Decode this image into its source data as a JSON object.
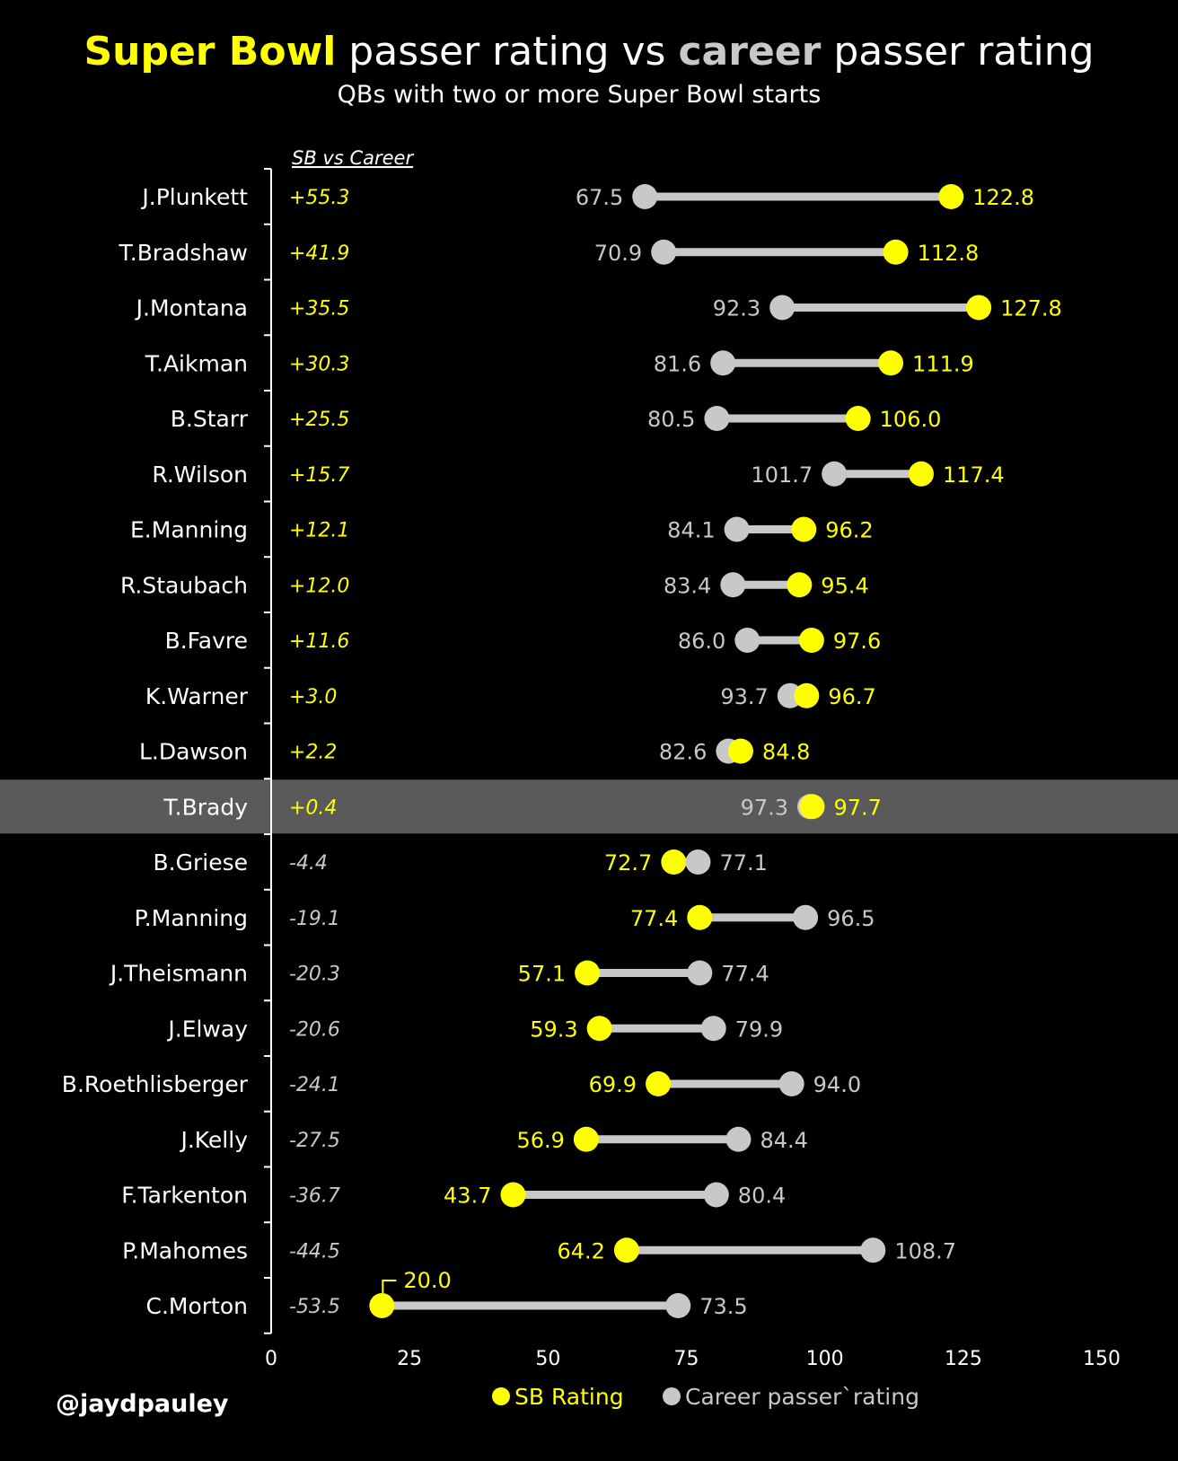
{
  "title": {
    "part1": "Super Bowl",
    "part2": " passer rating vs ",
    "part3": "career",
    "part4": " passer rating"
  },
  "subtitle": "QBs with two or more Super Bowl starts",
  "column_header": "SB vs Career",
  "credit": "@jaydpauley",
  "highlight_row": "T.Brady",
  "colors": {
    "background": "#000000",
    "sb": "#ffff00",
    "career": "#c8c8c8",
    "connector": "#c8c8c8",
    "highlight": "#5a5a5a",
    "text": "#ffffff"
  },
  "chart_data": {
    "type": "dumbbell",
    "title": "Super Bowl passer rating vs career passer rating",
    "subtitle": "QBs with two or more Super Bowl starts",
    "xlim": [
      0,
      150
    ],
    "xticks": [
      0,
      25,
      50,
      75,
      100,
      125,
      150
    ],
    "grid": false,
    "legend_position": "bottom",
    "series": [
      {
        "name": "SB Rating",
        "key": "sb",
        "color": "#ffff00"
      },
      {
        "name": "Career passer`rating",
        "key": "career",
        "color": "#c8c8c8"
      }
    ],
    "rows": [
      {
        "qb": "J.Plunkett",
        "diff": "+55.3",
        "sb": 122.8,
        "career": 67.5,
        "sb_label": "122.8",
        "career_label": "67.5"
      },
      {
        "qb": "T.Bradshaw",
        "diff": "+41.9",
        "sb": 112.8,
        "career": 70.9,
        "sb_label": "112.8",
        "career_label": "70.9"
      },
      {
        "qb": "J.Montana",
        "diff": "+35.5",
        "sb": 127.8,
        "career": 92.3,
        "sb_label": "127.8",
        "career_label": "92.3"
      },
      {
        "qb": "T.Aikman",
        "diff": "+30.3",
        "sb": 111.9,
        "career": 81.6,
        "sb_label": "111.9",
        "career_label": "81.6"
      },
      {
        "qb": "B.Starr",
        "diff": "+25.5",
        "sb": 106.0,
        "career": 80.5,
        "sb_label": "106.0",
        "career_label": "80.5"
      },
      {
        "qb": "R.Wilson",
        "diff": "+15.7",
        "sb": 117.4,
        "career": 101.7,
        "sb_label": "117.4",
        "career_label": "101.7"
      },
      {
        "qb": "E.Manning",
        "diff": "+12.1",
        "sb": 96.2,
        "career": 84.1,
        "sb_label": "96.2",
        "career_label": "84.1"
      },
      {
        "qb": "R.Staubach",
        "diff": "+12.0",
        "sb": 95.4,
        "career": 83.4,
        "sb_label": "95.4",
        "career_label": "83.4"
      },
      {
        "qb": "B.Favre",
        "diff": "+11.6",
        "sb": 97.6,
        "career": 86.0,
        "sb_label": "97.6",
        "career_label": "86.0"
      },
      {
        "qb": "K.Warner",
        "diff": "+3.0",
        "sb": 96.7,
        "career": 93.7,
        "sb_label": "96.7",
        "career_label": "93.7"
      },
      {
        "qb": "L.Dawson",
        "diff": "+2.2",
        "sb": 84.8,
        "career": 82.6,
        "sb_label": "84.8",
        "career_label": "82.6"
      },
      {
        "qb": "T.Brady",
        "diff": "+0.4",
        "sb": 97.7,
        "career": 97.3,
        "sb_label": "97.7",
        "career_label": "97.3"
      },
      {
        "qb": "B.Griese",
        "diff": "-4.4",
        "sb": 72.7,
        "career": 77.1,
        "sb_label": "72.7",
        "career_label": "77.1"
      },
      {
        "qb": "P.Manning",
        "diff": "-19.1",
        "sb": 77.4,
        "career": 96.5,
        "sb_label": "77.4",
        "career_label": "96.5"
      },
      {
        "qb": "J.Theismann",
        "diff": "-20.3",
        "sb": 57.1,
        "career": 77.4,
        "sb_label": "57.1",
        "career_label": "77.4"
      },
      {
        "qb": "J.Elway",
        "diff": "-20.6",
        "sb": 59.3,
        "career": 79.9,
        "sb_label": "59.3",
        "career_label": "79.9"
      },
      {
        "qb": "B.Roethlisberger",
        "diff": "-24.1",
        "sb": 69.9,
        "career": 94.0,
        "sb_label": "69.9",
        "career_label": "94.0"
      },
      {
        "qb": "J.Kelly",
        "diff": "-27.5",
        "sb": 56.9,
        "career": 84.4,
        "sb_label": "56.9",
        "career_label": "84.4"
      },
      {
        "qb": "F.Tarkenton",
        "diff": "-36.7",
        "sb": 43.7,
        "career": 80.4,
        "sb_label": "43.7",
        "career_label": "80.4"
      },
      {
        "qb": "P.Mahomes",
        "diff": "-44.5",
        "sb": 64.2,
        "career": 108.7,
        "sb_label": "64.2",
        "career_label": "108.7"
      },
      {
        "qb": "C.Morton",
        "diff": "-53.5",
        "sb": 20.0,
        "career": 73.5,
        "sb_label": "20.0",
        "career_label": "73.5"
      }
    ]
  }
}
